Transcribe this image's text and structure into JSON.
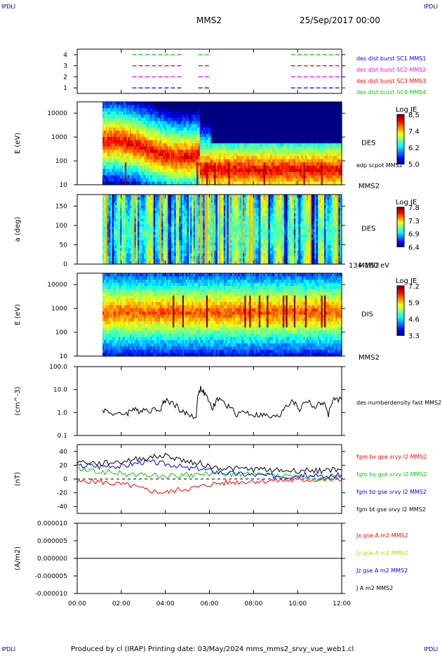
{
  "corner_label": "IPDLI",
  "header": {
    "spacecraft": "MMS2",
    "date": "25/Sep/2017 00:00"
  },
  "footer": "Produced by cl (IRAP)   Printing date: 03/May/2024   mms_mms2_srvy_vue_web1.cl",
  "x_ticks": [
    "00:00",
    "02:00",
    "04:00",
    "06:00",
    "08:00",
    "10:00",
    "12:00"
  ],
  "chart_data": [
    {
      "type": "scatter",
      "panel": "burst-availability",
      "yticks": [
        "1",
        "2",
        "3",
        "4"
      ],
      "ylim": [
        0.5,
        4.5
      ],
      "xlim_hours": [
        0,
        12
      ],
      "series": [
        {
          "name": "des dist burst SC1 MMS1",
          "color": "#0000ff",
          "y": 1,
          "segments": [
            [
              2.5,
              3.1
            ],
            [
              3.1,
              4.8
            ],
            [
              5.5,
              6.0
            ],
            [
              9.7,
              12.0
            ]
          ]
        },
        {
          "name": "des dist burst SC2 MMS2",
          "color": "#ff00ff",
          "y": 2,
          "segments": [
            [
              2.5,
              3.1
            ],
            [
              3.1,
              4.8
            ],
            [
              5.5,
              6.0
            ],
            [
              9.7,
              12.0
            ]
          ]
        },
        {
          "name": "des dist burst SC3 MMS3",
          "color": "#ff0000",
          "y": 3,
          "segments": [
            [
              2.5,
              3.1
            ],
            [
              3.1,
              4.8
            ],
            [
              5.5,
              6.0
            ],
            [
              9.7,
              12.0
            ]
          ]
        },
        {
          "name": "des dist burst SC4 MMS4",
          "color": "#00cc00",
          "y": 4,
          "segments": [
            [
              2.5,
              3.1
            ],
            [
              3.1,
              4.8
            ],
            [
              5.5,
              6.0
            ],
            [
              9.7,
              12.0
            ]
          ]
        }
      ]
    },
    {
      "type": "heatmap",
      "panel": "des-energy",
      "ylabel": "E (eV)",
      "yticks": [
        "10",
        "100",
        "1000",
        "10000"
      ],
      "ylog": true,
      "ylim": [
        10,
        30000
      ],
      "data_start_hours": 1.15,
      "label": "DES",
      "sublabel": "MMS2",
      "overlay": "edp scpot MMS2",
      "colorbar": {
        "title": "Log JE",
        "ticks": [
          "8.5",
          "7.4",
          "6.2",
          "5.0"
        ],
        "range": [
          5.0,
          8.5
        ]
      }
    },
    {
      "type": "heatmap",
      "panel": "des-pitch",
      "ylabel": "a (deg)",
      "yticks": [
        "0",
        "50",
        "100",
        "150"
      ],
      "ylim": [
        0,
        180
      ],
      "data_start_hours": 1.15,
      "label": "DES",
      "sublabel": "MMS2",
      "energy_range": "134-180 eV",
      "colorbar": {
        "title": "Log JE",
        "ticks": [
          "7.8",
          "7.3",
          "6.9",
          "6.4"
        ],
        "range": [
          6.4,
          7.8
        ]
      }
    },
    {
      "type": "heatmap",
      "panel": "dis-energy",
      "ylabel": "E (eV)",
      "yticks": [
        "10",
        "100",
        "1000",
        "10000"
      ],
      "ylog": true,
      "ylim": [
        10,
        30000
      ],
      "data_start_hours": 1.15,
      "label": "DIS",
      "sublabel": "MMS2",
      "colorbar": {
        "title": "Log JE",
        "ticks": [
          "7.2",
          "5.9",
          "4.6",
          "3.3"
        ],
        "range": [
          3.3,
          7.2
        ]
      }
    },
    {
      "type": "line",
      "panel": "density",
      "ylabel": "(cm^-3)",
      "yticks": [
        "0.1",
        "1.0",
        "10.0",
        "100.0"
      ],
      "ylog": true,
      "ylim": [
        0.1,
        100
      ],
      "series": [
        {
          "name": "des numberdensity fast MMS2",
          "color": "#000000",
          "x": [
            1.15,
            1.5,
            1.9,
            2.3,
            2.5,
            2.7,
            3.0,
            3.4,
            3.8,
            4.0,
            4.4,
            4.7,
            5.0,
            5.4,
            5.6,
            5.8,
            6.1,
            6.4,
            6.8,
            7.2,
            7.6,
            8.0,
            8.4,
            8.8,
            9.2,
            9.4,
            9.8,
            10.1,
            10.4,
            10.8,
            11.1,
            11.4,
            11.7,
            12.0
          ],
          "y": [
            1.4,
            1.0,
            0.8,
            1.0,
            1.5,
            1.2,
            1.4,
            1.3,
            1.6,
            3.5,
            2.5,
            1.1,
            0.9,
            0.6,
            12.0,
            6.0,
            1.2,
            4.0,
            2.0,
            0.9,
            1.1,
            0.8,
            0.8,
            0.6,
            0.7,
            1.8,
            3.0,
            1.2,
            3.5,
            1.5,
            3.0,
            0.8,
            4.0,
            3.5
          ]
        }
      ]
    },
    {
      "type": "line",
      "panel": "magnetic-field",
      "ylabel": "(nT)",
      "yticks": [
        "-40",
        "-20",
        "0",
        "20",
        "40"
      ],
      "ylim": [
        -50,
        50
      ],
      "x": [
        0,
        0.5,
        1.0,
        1.5,
        2.0,
        2.5,
        3.0,
        3.5,
        4.0,
        4.5,
        5.0,
        5.5,
        6.0,
        6.5,
        7.0,
        7.5,
        8.0,
        8.5,
        9.0,
        9.5,
        10.0,
        10.5,
        11.0,
        11.5,
        12.0
      ],
      "series": [
        {
          "name": "fgm bx gse srvy l2 MMS2",
          "color": "#ff0000",
          "values": [
            -5,
            -3,
            -4,
            -6,
            -8,
            -10,
            -15,
            -18,
            -20,
            -16,
            -14,
            -12,
            -8,
            -6,
            -5,
            -4,
            -3,
            -3,
            -2,
            -2,
            -2,
            -1,
            -1,
            -1,
            -1
          ]
        },
        {
          "name": "fgm by gse srvy l2 MMS2",
          "color": "#00cc00",
          "values": [
            15,
            12,
            10,
            10,
            8,
            6,
            6,
            5,
            4,
            5,
            5,
            6,
            8,
            8,
            7,
            7,
            6,
            6,
            5,
            4,
            2,
            2,
            0,
            4,
            5
          ]
        },
        {
          "name": "fgm bz gse srvy l2 MMS2",
          "color": "#0000ff",
          "values": [
            18,
            20,
            18,
            20,
            18,
            22,
            25,
            24,
            22,
            20,
            15,
            16,
            12,
            10,
            8,
            7,
            6,
            5,
            5,
            4,
            6,
            6,
            3,
            4,
            6
          ]
        },
        {
          "name": "fgm bt gse srvy l2 MMS2",
          "color": "#000000",
          "values": [
            25,
            24,
            22,
            24,
            25,
            28,
            30,
            32,
            34,
            30,
            25,
            24,
            18,
            16,
            15,
            15,
            14,
            14,
            13,
            12,
            12,
            13,
            12,
            13,
            14
          ]
        }
      ]
    },
    {
      "type": "line",
      "panel": "current-density",
      "ylabel": "(A/m2)",
      "yticks": [
        "-0.000010",
        "-0.000005",
        "0.000000",
        "0.000005",
        "0.000010"
      ],
      "ylim": [
        -1e-05,
        1e-05
      ],
      "series": [
        {
          "name": "Jx gse A m2 MMS2",
          "color": "#ff0000",
          "x": [
            0,
            12
          ],
          "y": [
            0,
            0
          ]
        },
        {
          "name": "Jy gse A m2 MMS2",
          "color": "#cccc00",
          "x": [
            0,
            12
          ],
          "y": [
            0,
            0
          ]
        },
        {
          "name": "Jz gse A m2 MMS2",
          "color": "#0000ff",
          "x": [
            0,
            12
          ],
          "y": [
            0,
            0
          ]
        },
        {
          "name": "J A m2 MMS2",
          "color": "#000000",
          "x": [
            0,
            12
          ],
          "y": [
            0,
            0
          ]
        }
      ]
    }
  ]
}
